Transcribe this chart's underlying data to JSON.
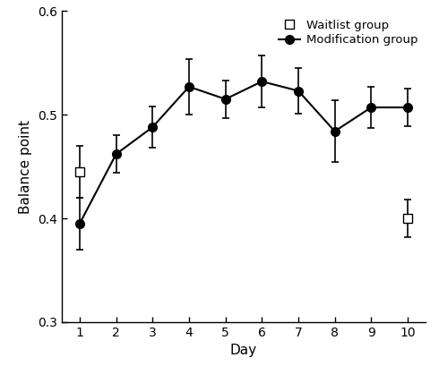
{
  "mod_days": [
    1,
    2,
    3,
    4,
    5,
    6,
    7,
    8,
    9,
    10
  ],
  "mod_values": [
    0.395,
    0.462,
    0.488,
    0.527,
    0.515,
    0.532,
    0.523,
    0.484,
    0.507,
    0.507
  ],
  "mod_errors": [
    0.025,
    0.018,
    0.02,
    0.027,
    0.018,
    0.025,
    0.022,
    0.03,
    0.02,
    0.018
  ],
  "wait_days": [
    1,
    10
  ],
  "wait_values": [
    0.445,
    0.4
  ],
  "wait_errors": [
    0.025,
    0.018
  ],
  "ylim": [
    0.3,
    0.6
  ],
  "yticks": [
    0.3,
    0.4,
    0.5,
    0.6
  ],
  "xticks": [
    1,
    2,
    3,
    4,
    5,
    6,
    7,
    8,
    9,
    10
  ],
  "xlabel": "Day",
  "ylabel": "Balance point",
  "legend_waitlist": "Waitlist group",
  "legend_mod": "Modification group",
  "bg_color": "#ffffff",
  "line_color": "#000000",
  "marker_color": "#000000",
  "marker_size": 7,
  "linewidth": 1.5,
  "capsize": 3
}
